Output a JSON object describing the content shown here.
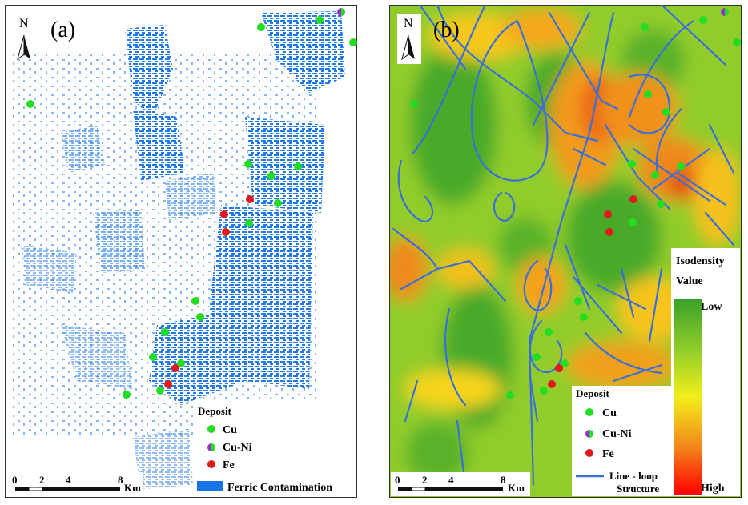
{
  "panel_a": {
    "label": "(a)",
    "north": "N",
    "legend": {
      "title": "Deposit",
      "items": [
        "Cu",
        "Cu-Ni",
        "Fe"
      ],
      "contamination": "Ferric Contamination"
    },
    "scale": {
      "ticks": [
        "0",
        "2",
        "4",
        "8"
      ],
      "unit": "Km"
    }
  },
  "panel_b": {
    "label": "(b)",
    "north": "N",
    "legend": {
      "title": "Deposit",
      "items": [
        "Cu",
        "Cu-Ni",
        "Fe"
      ],
      "structure_line1": "Line - loop",
      "structure_line2": "Structure"
    },
    "isodensity": {
      "title_line1": "Isodensity",
      "title_line2": "Value",
      "low": "Low",
      "high": "High"
    },
    "scale": {
      "ticks": [
        "0",
        "2",
        "4",
        "8"
      ],
      "unit": "Km"
    }
  },
  "colors": {
    "cu": "#22dd22",
    "cu_ni_left": "#9a2fd0",
    "cu_ni_right": "#22dd22",
    "fe": "#e01a1a",
    "ferric": "#1874e6",
    "structure": "#3a6fd8",
    "density_low": "#3aa02a",
    "density_high": "#ff0000"
  }
}
